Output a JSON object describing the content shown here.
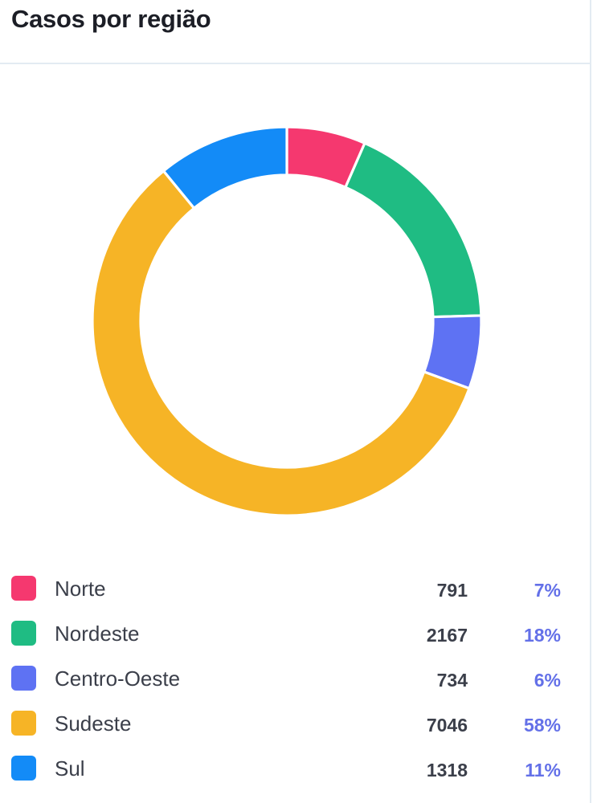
{
  "card": {
    "title": "Casos por região"
  },
  "chart_data": {
    "type": "pie",
    "variant": "donut",
    "categories": [
      "Norte",
      "Nordeste",
      "Centro-Oeste",
      "Sudeste",
      "Sul"
    ],
    "values": [
      791,
      2167,
      734,
      7046,
      1318
    ],
    "percent_labels": [
      "7%",
      "18%",
      "6%",
      "58%",
      "11%"
    ],
    "colors": [
      "#f5386f",
      "#1fbc83",
      "#5e72f3",
      "#f6b426",
      "#138bf7"
    ],
    "legend_placement": "bottom",
    "title": "Casos por região"
  }
}
